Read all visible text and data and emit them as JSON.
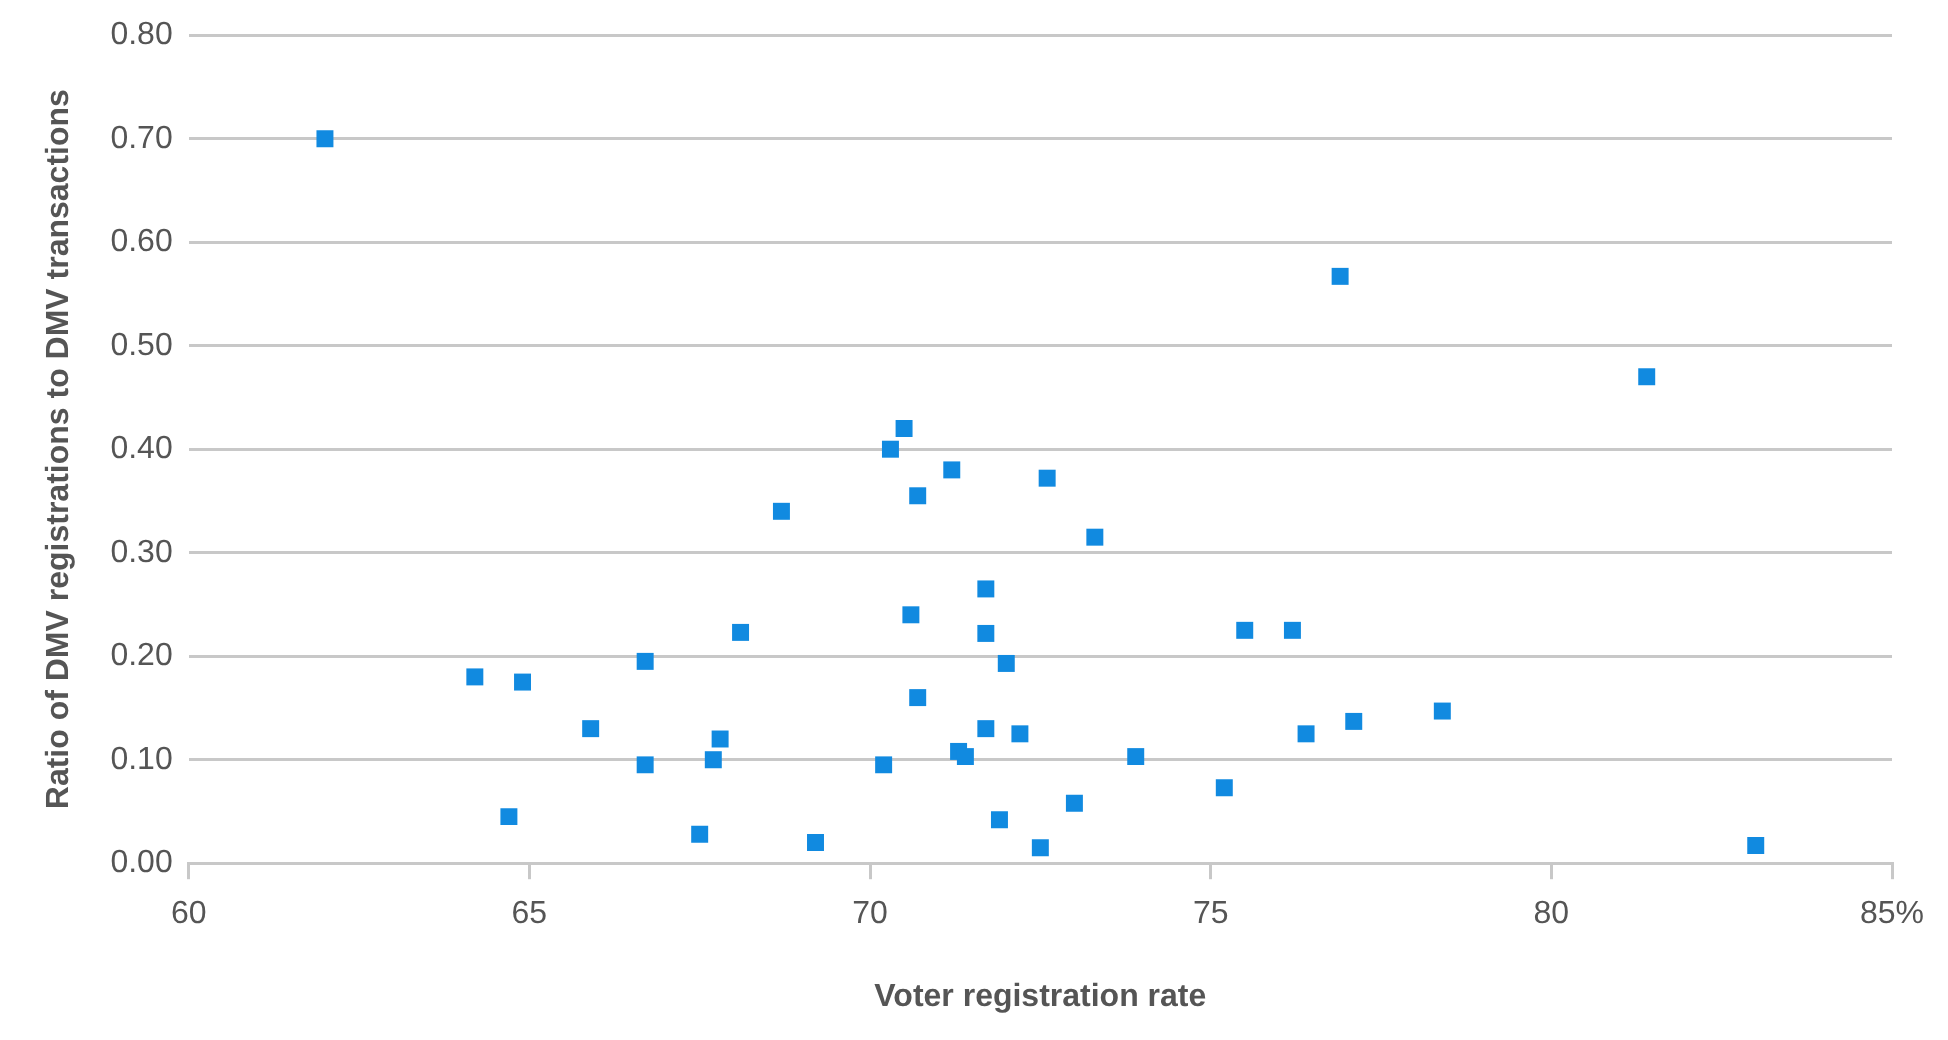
{
  "chart_data": {
    "type": "scatter",
    "xlabel": "Voter registration rate",
    "ylabel": "Ratio of DMV registrations to DMV transactions",
    "x": [
      62.0,
      64.2,
      64.9,
      64.7,
      65.9,
      66.7,
      66.7,
      68.1,
      67.5,
      67.7,
      67.8,
      68.7,
      69.2,
      70.2,
      70.3,
      70.5,
      70.6,
      70.7,
      70.7,
      71.2,
      71.3,
      71.4,
      71.7,
      71.7,
      71.7,
      71.9,
      72.0,
      72.2,
      72.5,
      72.6,
      73.0,
      73.3,
      73.9,
      75.2,
      75.5,
      76.2,
      76.4,
      77.1,
      76.9,
      81.4,
      78.4,
      83.0
    ],
    "series": [
      {
        "color": "#118ae0",
        "values": [
          0.7,
          0.18,
          0.175,
          0.045,
          0.13,
          0.195,
          0.095,
          0.223,
          0.028,
          0.1,
          0.12,
          0.34,
          0.02,
          0.095,
          0.4,
          0.42,
          0.24,
          0.16,
          0.355,
          0.38,
          0.108,
          0.103,
          0.265,
          0.222,
          0.13,
          0.042,
          0.193,
          0.125,
          0.015,
          0.372,
          0.058,
          0.315,
          0.103,
          0.073,
          0.225,
          0.225,
          0.125,
          0.137,
          0.567,
          0.47,
          0.147,
          0.017
        ]
      }
    ],
    "xlim": [
      60,
      85
    ],
    "xticks": [
      60,
      65,
      70,
      75,
      80,
      {
        "value": 85,
        "label": "85%"
      }
    ],
    "ylim": [
      0,
      0.8
    ],
    "yticks": [
      {
        "value": 0,
        "label": "0.00"
      },
      {
        "value": 0.1,
        "label": "0.10"
      },
      {
        "value": 0.2,
        "label": "0.20"
      },
      {
        "value": 0.3,
        "label": "0.30"
      },
      {
        "value": 0.4,
        "label": "0.40"
      },
      {
        "value": 0.5,
        "label": "0.50"
      },
      {
        "value": 0.6,
        "label": "0.60"
      },
      {
        "value": 0.7,
        "label": "0.70"
      },
      {
        "value": 0.8,
        "label": "0.80"
      }
    ],
    "grid": "y",
    "legend": false,
    "marker": "square"
  }
}
